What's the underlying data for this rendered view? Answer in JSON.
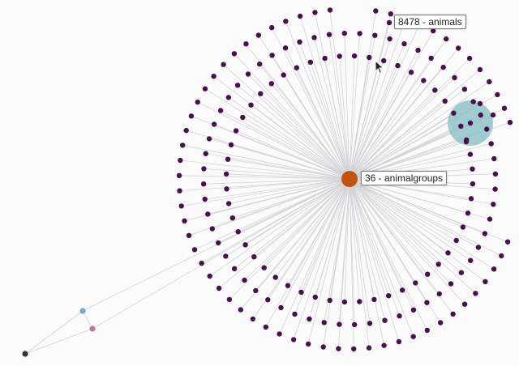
{
  "graph": {
    "hub": {
      "label": "36 - animalgroups",
      "color": "#c25212"
    },
    "hovered_node": {
      "label": "8478 - animals"
    },
    "leaf_color": "#4a0f4f",
    "edge_color": "#d3d3d6",
    "highlight_color": "#8fc3c8",
    "side_nodes": [
      {
        "name": "blue-node",
        "color": "#6fa9d6"
      },
      {
        "name": "pink-node",
        "color": "#b97a9a"
      },
      {
        "name": "dark-node",
        "color": "#333333"
      }
    ]
  }
}
